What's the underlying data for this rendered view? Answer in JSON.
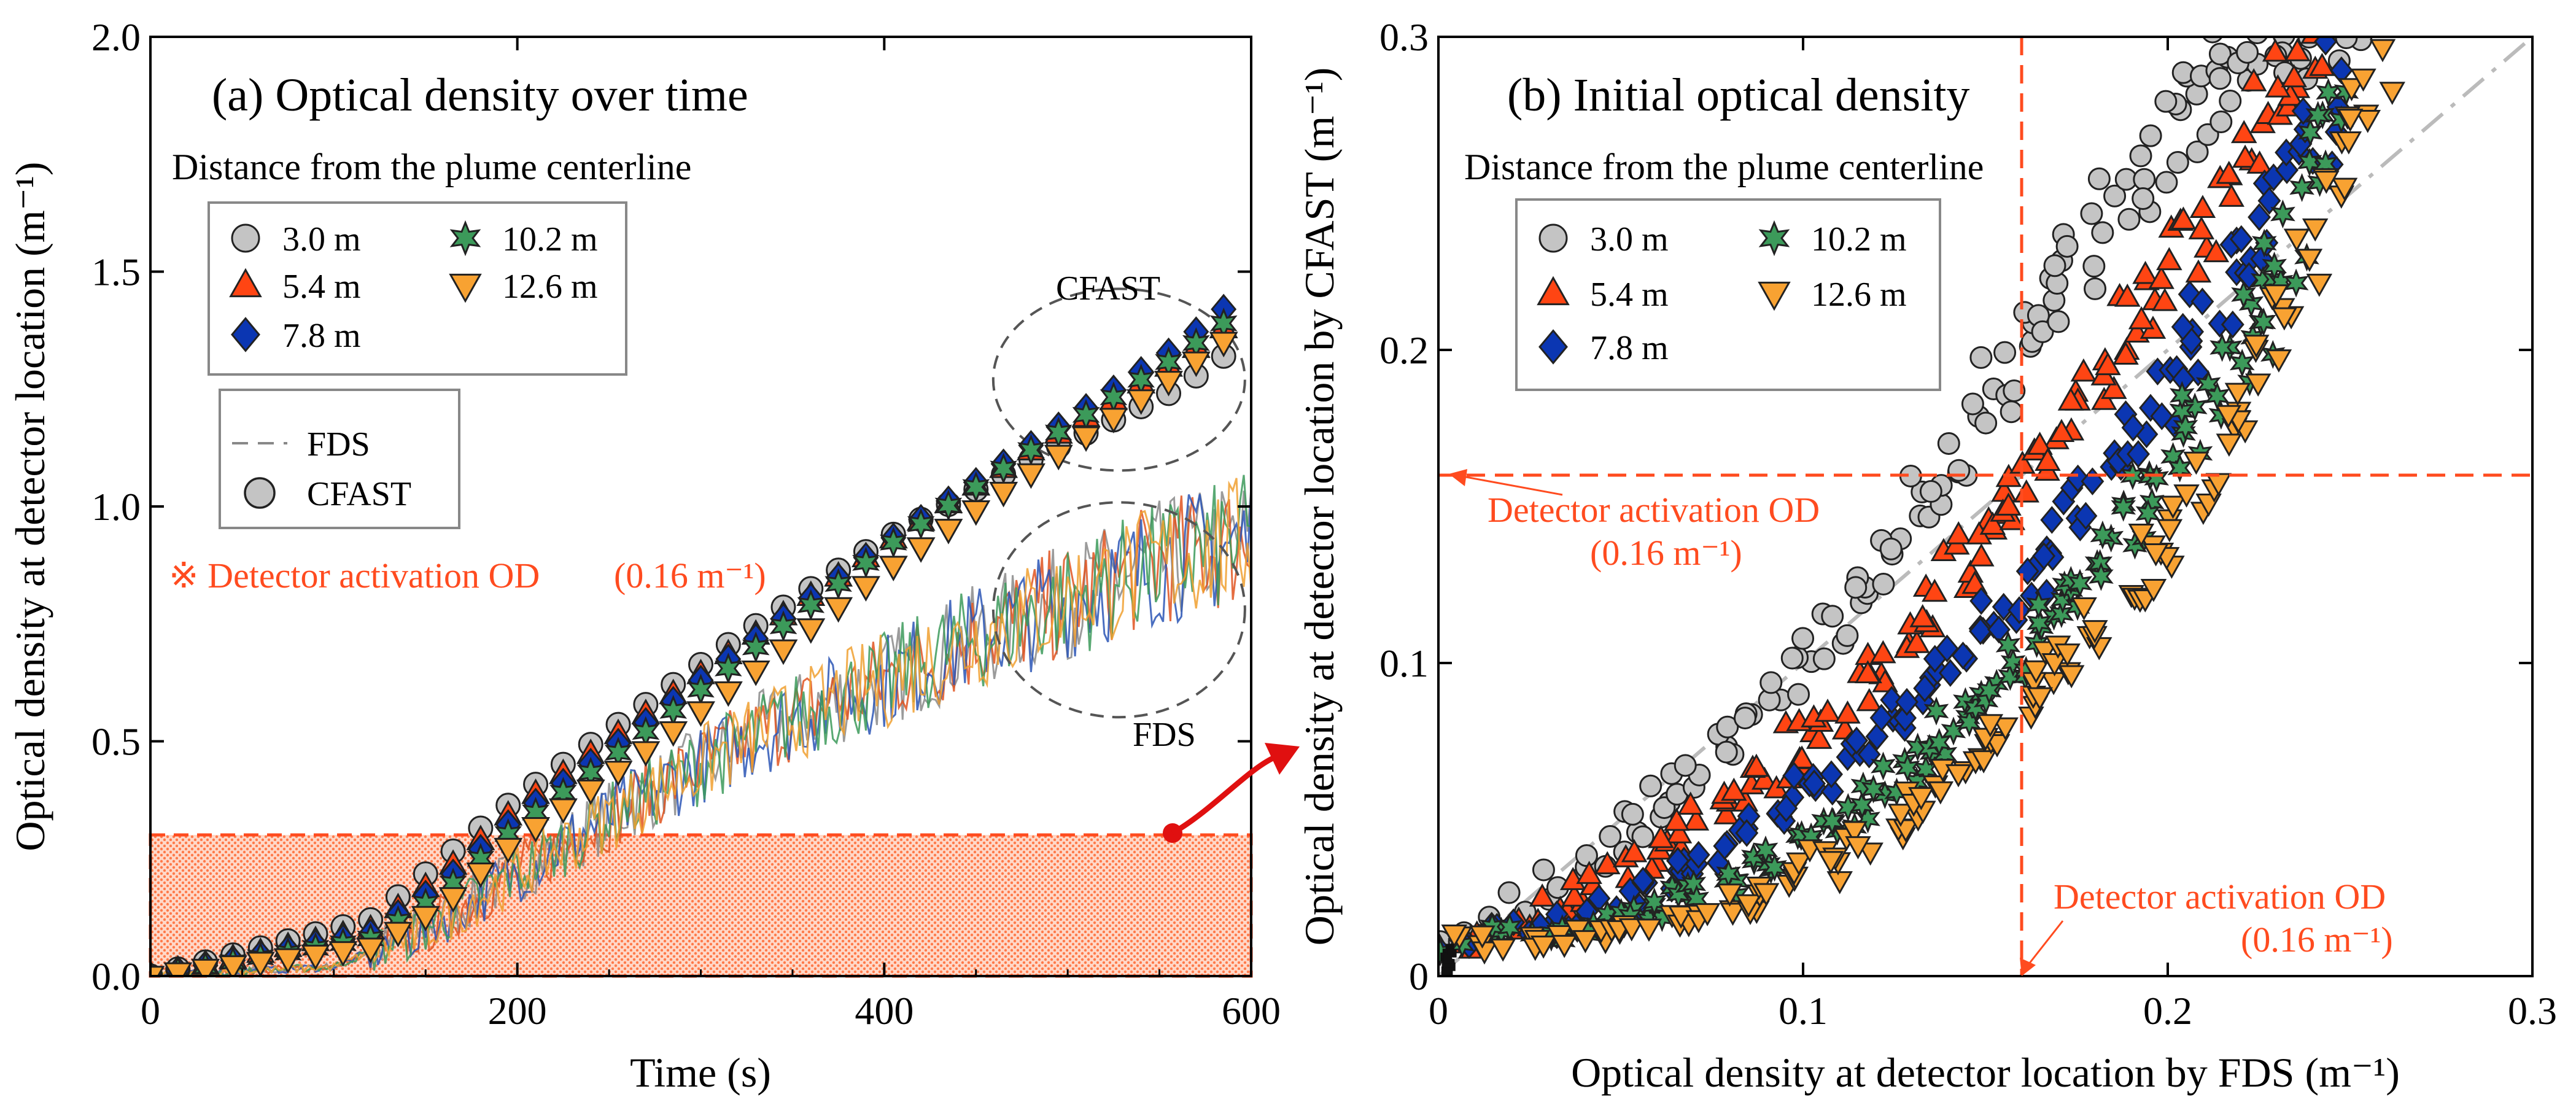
{
  "colors": {
    "s3": "#c4c4c4",
    "s5": "#ff4513",
    "s7": "#0b36b2",
    "s10": "#3c9a5a",
    "s12": "#f8a232",
    "detector": "#ff4b1f",
    "red_arrow": "#e01010",
    "fds_noise": [
      "#8a8a8a",
      "#e05420",
      "#2a55b5",
      "#3c9a5a",
      "#f0a030"
    ]
  },
  "icons": {
    "arrow": "curved-red-arrow-icon",
    "circle": "circle-marker-icon",
    "triangle": "triangle-up-marker-icon",
    "diamond": "diamond-marker-icon",
    "star": "star-marker-icon",
    "tri_down": "triangle-down-marker-icon"
  },
  "chart_data": [
    {
      "type": "line",
      "title": "(a) Optical density over time",
      "xlabel": "Time (s)",
      "ylabel": "Optical density at detector location (m⁻¹)",
      "xlim": [
        0,
        600
      ],
      "ylim": [
        0,
        2.0
      ],
      "xticks": [
        "0",
        "200",
        "400",
        "600"
      ],
      "yticks": [
        "0.0",
        "0.5",
        "1.0",
        "1.5",
        "2.0"
      ],
      "legend_title": "Distance from the plume centerline",
      "legend_entries": [
        "3.0 m",
        "10.2 m",
        "5.4 m",
        "12.6 m",
        "7.8 m"
      ],
      "model_legend": [
        "FDS",
        "CFAST"
      ],
      "annotation_cfast": "CFAST",
      "annotation_fds": "FDS",
      "detector_note": "※ Detector activation OD",
      "detector_note_value": "(0.16 m⁻¹)",
      "highlight_region": {
        "x": [
          0,
          600
        ],
        "y": [
          0,
          0.3
        ]
      },
      "x_marker_step": 15,
      "series": [
        {
          "name": "3.0 m",
          "marker": "circle",
          "x": [
            0,
            120,
            160,
            200,
            260,
            320,
            400,
            480,
            560,
            585
          ],
          "y": [
            0.0,
            0.12,
            0.25,
            0.38,
            0.55,
            0.72,
            0.93,
            1.1,
            1.25,
            1.32
          ]
        },
        {
          "name": "5.4 m",
          "marker": "triangle-up",
          "x": [
            0,
            120,
            160,
            200,
            260,
            320,
            400,
            480,
            560,
            585
          ],
          "y": [
            0.0,
            0.1,
            0.22,
            0.36,
            0.53,
            0.7,
            0.92,
            1.12,
            1.31,
            1.38
          ]
        },
        {
          "name": "7.8 m",
          "marker": "diamond",
          "x": [
            0,
            120,
            160,
            200,
            260,
            320,
            400,
            480,
            560,
            585
          ],
          "y": [
            0.0,
            0.09,
            0.2,
            0.34,
            0.51,
            0.69,
            0.92,
            1.13,
            1.34,
            1.42
          ]
        },
        {
          "name": "10.2 m",
          "marker": "star",
          "x": [
            0,
            120,
            160,
            200,
            260,
            320,
            400,
            480,
            560,
            585
          ],
          "y": [
            0.0,
            0.08,
            0.18,
            0.32,
            0.49,
            0.67,
            0.91,
            1.12,
            1.32,
            1.39
          ]
        },
        {
          "name": "12.6 m",
          "marker": "triangle-down",
          "x": [
            0,
            120,
            160,
            200,
            260,
            320,
            400,
            480,
            560,
            585
          ],
          "y": [
            0.0,
            0.06,
            0.15,
            0.29,
            0.45,
            0.62,
            0.86,
            1.07,
            1.28,
            1.35
          ]
        }
      ],
      "fds_trend": {
        "x": [
          0,
          100,
          150,
          200,
          250,
          300,
          350,
          400,
          450,
          500,
          550,
          600
        ],
        "y": [
          0.0,
          0.02,
          0.1,
          0.22,
          0.34,
          0.45,
          0.55,
          0.63,
          0.72,
          0.8,
          0.88,
          0.93
        ]
      }
    },
    {
      "type": "scatter",
      "title": "(b) Initial optical density",
      "xlabel": "Optical density at detector location by FDS (m⁻¹)",
      "ylabel": "Optical density at detector location by CFAST (m⁻¹)",
      "xlim": [
        0,
        0.3
      ],
      "ylim": [
        0,
        0.3
      ],
      "xticks": [
        "0",
        "0.1",
        "0.2",
        "0.3"
      ],
      "yticks": [
        "0",
        "0.1",
        "0.2",
        "0.3"
      ],
      "legend_title": "Distance from the plume centerline",
      "legend_entries": [
        "3.0 m",
        "10.2 m",
        "5.4 m",
        "12.6 m",
        "7.8 m"
      ],
      "detector_note_y": "Detector activation OD",
      "detector_note_y_value": "(0.16 m⁻¹)",
      "detector_note_x": "Detector activation OD",
      "detector_note_x_value": "(0.16 m⁻¹)",
      "detector_od": 0.16,
      "reference_line": {
        "x": [
          0,
          0.3
        ],
        "y": [
          0,
          0.3
        ]
      },
      "series": [
        {
          "name": "3.0 m",
          "marker": "circle",
          "x": [
            0.0,
            0.02,
            0.05,
            0.08,
            0.1,
            0.12,
            0.14,
            0.16,
            0.18,
            0.2,
            0.22,
            0.25
          ],
          "y": [
            0.01,
            0.02,
            0.045,
            0.075,
            0.1,
            0.13,
            0.165,
            0.2,
            0.235,
            0.27,
            0.295,
            0.3
          ]
        },
        {
          "name": "5.4 m",
          "marker": "triangle-up",
          "x": [
            0.0,
            0.03,
            0.06,
            0.09,
            0.11,
            0.13,
            0.15,
            0.17,
            0.19,
            0.21,
            0.23,
            0.24
          ],
          "y": [
            0.01,
            0.02,
            0.04,
            0.065,
            0.085,
            0.11,
            0.14,
            0.17,
            0.205,
            0.24,
            0.28,
            0.3
          ]
        },
        {
          "name": "7.8 m",
          "marker": "diamond",
          "x": [
            0.0,
            0.04,
            0.07,
            0.1,
            0.12,
            0.14,
            0.16,
            0.18,
            0.2,
            0.22,
            0.24,
            0.245
          ],
          "y": [
            0.01,
            0.018,
            0.035,
            0.058,
            0.078,
            0.1,
            0.125,
            0.155,
            0.19,
            0.23,
            0.27,
            0.29
          ]
        },
        {
          "name": "10.2 m",
          "marker": "star",
          "x": [
            0.0,
            0.04,
            0.08,
            0.11,
            0.13,
            0.15,
            0.17,
            0.19,
            0.21,
            0.23,
            0.24,
            0.25
          ],
          "y": [
            0.01,
            0.015,
            0.03,
            0.05,
            0.07,
            0.09,
            0.115,
            0.145,
            0.18,
            0.22,
            0.25,
            0.28
          ]
        },
        {
          "name": "12.6 m",
          "marker": "triangle-down",
          "x": [
            0.0,
            0.05,
            0.09,
            0.12,
            0.14,
            0.16,
            0.18,
            0.2,
            0.22,
            0.24,
            0.25,
            0.26
          ],
          "y": [
            0.01,
            0.013,
            0.025,
            0.045,
            0.065,
            0.085,
            0.11,
            0.14,
            0.18,
            0.23,
            0.27,
            0.29
          ]
        }
      ]
    }
  ]
}
